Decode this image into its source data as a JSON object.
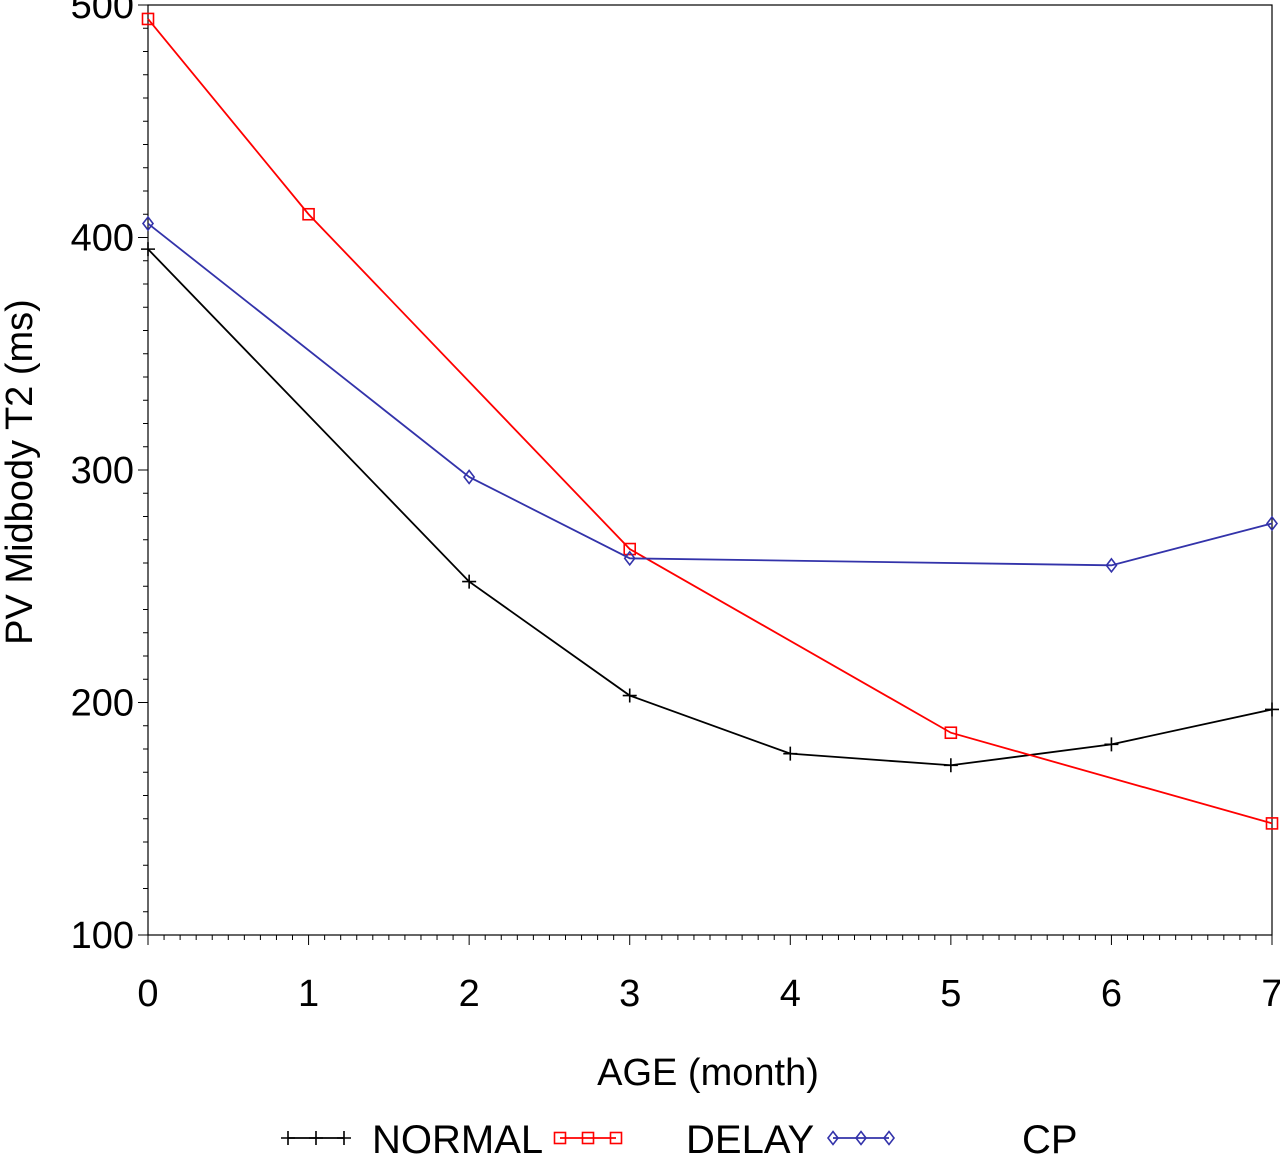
{
  "chart_data": {
    "type": "line",
    "xlabel": "AGE  (month)",
    "ylabel": "PV Midbody T2 (ms)",
    "x": [
      0,
      1,
      2,
      3,
      4,
      5,
      6,
      7
    ],
    "xlim": [
      0,
      7
    ],
    "ylim": [
      100,
      500
    ],
    "xticks": [
      0,
      1,
      2,
      3,
      4,
      5,
      6,
      7
    ],
    "yticks": [
      100,
      200,
      300,
      400,
      500
    ],
    "grid": false,
    "legend_position": "bottom",
    "series": [
      {
        "name": "NORMAL",
        "color": "#000000",
        "marker": "plus",
        "points": [
          [
            0,
            395
          ],
          [
            2,
            252
          ],
          [
            3,
            203
          ],
          [
            4,
            178
          ],
          [
            5,
            173
          ],
          [
            6,
            182
          ],
          [
            7,
            197
          ]
        ]
      },
      {
        "name": "DELAY",
        "color": "#ff0000",
        "marker": "square",
        "points": [
          [
            0,
            494
          ],
          [
            1,
            410
          ],
          [
            3,
            266
          ],
          [
            5,
            187
          ],
          [
            7,
            148
          ]
        ]
      },
      {
        "name": "CP",
        "color": "#3333aa",
        "marker": "diamond",
        "points": [
          [
            0,
            406
          ],
          [
            2,
            297
          ],
          [
            3,
            262
          ],
          [
            6,
            259
          ],
          [
            7,
            277
          ]
        ]
      }
    ]
  }
}
